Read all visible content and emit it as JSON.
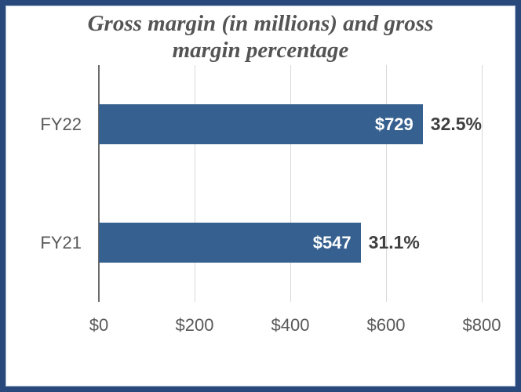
{
  "chart_data": {
    "type": "bar",
    "orientation": "horizontal",
    "title": "Gross margin (in millions) and gross margin percentage",
    "title_display": "Gross margin (in millions) and gross\nmargin percentage",
    "categories": [
      "FY22",
      "FY21"
    ],
    "series": [
      {
        "name": "Gross margin (in millions)",
        "values": [
          729,
          547
        ]
      },
      {
        "name": "Gross margin percentage",
        "values": [
          32.5,
          31.1
        ]
      }
    ],
    "rows": [
      {
        "category": "FY22",
        "value": 729,
        "value_label": "$729",
        "pct_label": "32.5%"
      },
      {
        "category": "FY21",
        "value": 547,
        "value_label": "$547",
        "pct_label": "31.1%"
      }
    ],
    "xlim": [
      0,
      800
    ],
    "x_tick_values": [
      0,
      200,
      400,
      600,
      800
    ],
    "x_tick_labels": [
      "$0",
      "$200",
      "$400",
      "$600",
      "$800"
    ],
    "grid": true,
    "legend_position": "none"
  },
  "colors": {
    "bar_fill": "#36608F",
    "frame_border": "#29497C",
    "frame_inner_line": "#AEBCD6",
    "gridline": "#D9D9D9",
    "axis_line": "#6B6B6B",
    "title_text": "#545454",
    "axis_text": "#595959",
    "bar_value_text": "#FFFFFF",
    "pct_text": "#3F3F3F",
    "background": "#FFFFFF"
  }
}
